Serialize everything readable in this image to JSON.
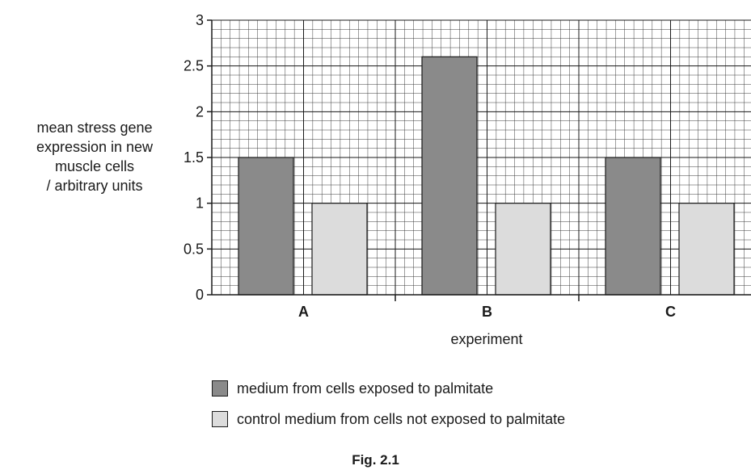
{
  "chart_data": {
    "type": "bar",
    "categories": [
      "A",
      "B",
      "C"
    ],
    "series": [
      {
        "name": "medium from cells exposed to palmitate",
        "values": [
          1.5,
          2.6,
          1.5
        ],
        "color": "#8a8a8a"
      },
      {
        "name": "control medium from cells not exposed to palmitate",
        "values": [
          1.0,
          1.0,
          1.0
        ],
        "color": "#dcdcdc"
      }
    ],
    "xlabel": "experiment",
    "ylabel_lines": [
      "mean stress gene",
      "expression in new",
      "muscle cells",
      "/ arbitrary units"
    ],
    "ylim": [
      0,
      3
    ],
    "yticks": [
      "0",
      "0.5",
      "1",
      "1.5",
      "2",
      "2.5",
      "3"
    ],
    "grid": true,
    "legend_position": "bottom"
  },
  "caption": "Fig. 2.1"
}
